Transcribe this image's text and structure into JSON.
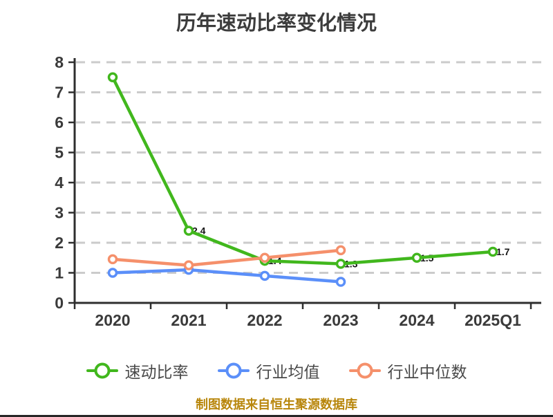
{
  "page": {
    "title": "历年速动比率变化情况",
    "caption": "制图数据来自恒生聚源数据库"
  },
  "chart_data": {
    "type": "line",
    "title": "历年速动比率变化情况",
    "categories": [
      "2020",
      "2021",
      "2022",
      "2023",
      "2024",
      "2025Q1"
    ],
    "series": [
      {
        "name": "速动比率",
        "color": "#41B71D",
        "values": [
          7.5,
          2.4,
          1.4,
          1.3,
          1.5,
          1.7
        ],
        "occluded_point_labels": [
          "",
          "2.4",
          "1.4",
          "1.3",
          "1.5",
          "1.7"
        ]
      },
      {
        "name": "行业均值",
        "color": "#5B8FF9",
        "values": [
          1.0,
          1.1,
          0.9,
          0.7,
          null,
          null
        ],
        "occluded_point_labels": [
          "",
          "",
          "",
          "",
          "",
          ""
        ]
      },
      {
        "name": "行业中位数",
        "color": "#F5906B",
        "values": [
          1.45,
          1.25,
          1.5,
          1.75,
          null,
          null
        ],
        "occluded_point_labels": [
          "",
          "",
          "",
          "",
          "",
          ""
        ]
      }
    ],
    "ylim": [
      0,
      8
    ],
    "yticks": [
      0,
      1,
      2,
      3,
      4,
      5,
      6,
      7,
      8
    ],
    "xlabel": "",
    "ylabel": "",
    "grid": "horizontal-dashed",
    "legend_position": "bottom",
    "colors": {
      "grid": "#CBCBCB",
      "axis": "#2E2E2E",
      "tick_label": "#3A3A3A",
      "title": "#3C3C3C",
      "caption": "#B8860B",
      "point_label": "#141414",
      "marker_fill": "#FFFFFF"
    }
  }
}
